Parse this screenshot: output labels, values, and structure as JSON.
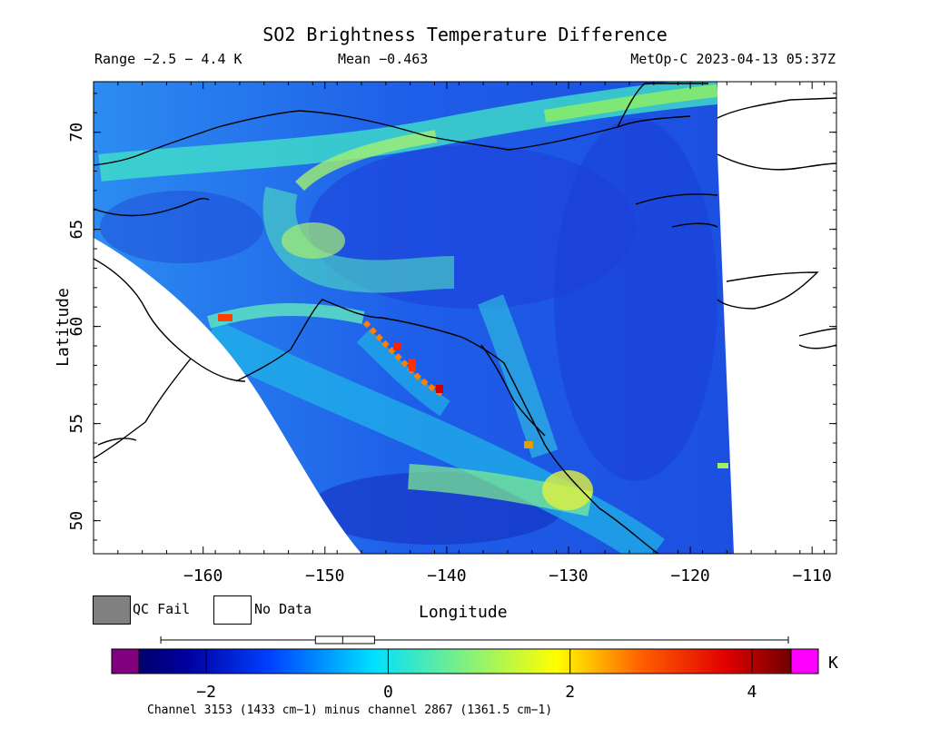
{
  "header": {
    "title": "SO2 Brightness Temperature Difference",
    "range": "Range −2.5 − 4.4 K",
    "mean": "Mean −0.463",
    "satellite_time": "MetOp-C 2023-04-13 05:37Z"
  },
  "axes": {
    "xlabel": "Longitude",
    "ylabel": "Latitude",
    "x_ticks": [
      "−160",
      "−150",
      "−140",
      "−130",
      "−120",
      "−110"
    ],
    "y_ticks": [
      "50",
      "55",
      "60",
      "65",
      "70"
    ],
    "x_range": [
      -169,
      -108
    ],
    "y_range": [
      48.3,
      72.6
    ]
  },
  "legend": {
    "qc_fail": "QC Fail",
    "no_data": "No Data",
    "qc_fail_color": "#808080",
    "no_data_color": "#ffffff"
  },
  "colorbar": {
    "ticks": [
      "−2",
      "0",
      "2",
      "4"
    ],
    "unit": "K",
    "range": [
      -2.9,
      4.7
    ],
    "under_color": "#800080",
    "over_color": "#ff00ff",
    "box_summary": {
      "whisker_min": -2.5,
      "q1": -0.8,
      "median": -0.5,
      "q3": -0.15,
      "whisker_max": 4.4
    }
  },
  "footnote": "Channel 3153 (1433 cm−1) minus channel 2867 (1361.5 cm−1)"
}
